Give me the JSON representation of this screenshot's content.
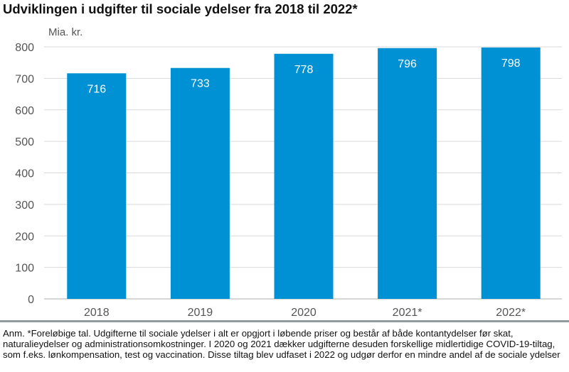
{
  "chart_data": {
    "type": "bar",
    "title": "Udviklingen i udgifter til sociale ydelser fra 2018 til 2022*",
    "ylabel": "Mia. kr.",
    "xlabel": "",
    "categories": [
      "2018",
      "2019",
      "2020",
      "2021*",
      "2022*"
    ],
    "values": [
      716,
      733,
      778,
      796,
      798
    ],
    "ylim": [
      0,
      800
    ],
    "yticks": [
      0,
      100,
      200,
      300,
      400,
      500,
      600,
      700,
      800
    ],
    "grid": true,
    "bar_color": "#0090d4",
    "label_color": "#ffffff"
  },
  "note": "Anm. *Foreløbige tal. Udgifterne til sociale ydelser i alt er opgjort i løbende priser og består af både kontantydelser før skat, naturalieydelser og administrationsomkostninger. I 2020 og 2021 dækker udgifterne desuden forskellige midlertidige COVID-19-tiltag, som f.eks. lønkompensation, test og vaccination. Disse tiltag blev udfaset i 2022 og udgør derfor en mindre andel af de sociale ydelser"
}
